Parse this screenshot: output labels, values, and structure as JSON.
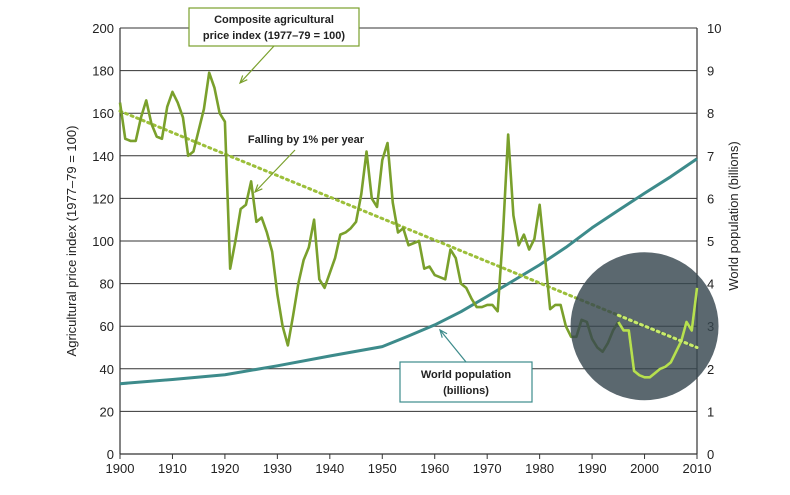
{
  "chart_data": {
    "type": "line",
    "xlim": [
      1900,
      2010
    ],
    "x_ticks": [
      1900,
      1910,
      1920,
      1930,
      1940,
      1950,
      1960,
      1970,
      1980,
      1990,
      2000,
      2010
    ],
    "y_left": {
      "label": "Agricultural price index (1977–79 = 100)",
      "lim": [
        0,
        200
      ],
      "ticks": [
        0,
        20,
        40,
        60,
        80,
        100,
        120,
        140,
        160,
        180,
        200
      ]
    },
    "y_right": {
      "label": "World population (billions)",
      "lim": [
        0,
        10
      ],
      "ticks": [
        0,
        1,
        2,
        3,
        4,
        5,
        6,
        7,
        8,
        9,
        10
      ]
    },
    "grid": true,
    "series": [
      {
        "name": "Composite agricultural price index (1977–79 = 100)",
        "axis": "left",
        "color": "#7aa02c",
        "x": [
          1900,
          1901,
          1902,
          1903,
          1904,
          1905,
          1906,
          1907,
          1908,
          1909,
          1910,
          1911,
          1912,
          1913,
          1914,
          1915,
          1916,
          1917,
          1918,
          1919,
          1920,
          1921,
          1922,
          1923,
          1924,
          1925,
          1926,
          1927,
          1928,
          1929,
          1930,
          1931,
          1932,
          1933,
          1934,
          1935,
          1936,
          1937,
          1938,
          1939,
          1940,
          1941,
          1942,
          1943,
          1944,
          1945,
          1946,
          1947,
          1948,
          1949,
          1950,
          1951,
          1952,
          1953,
          1954,
          1955,
          1956,
          1957,
          1958,
          1959,
          1960,
          1961,
          1962,
          1963,
          1964,
          1965,
          1966,
          1967,
          1968,
          1969,
          1970,
          1971,
          1972,
          1973,
          1974,
          1975,
          1976,
          1977,
          1978,
          1979,
          1980,
          1981,
          1982,
          1983,
          1984,
          1985,
          1986,
          1987,
          1988,
          1989,
          1990,
          1991,
          1992,
          1993,
          1994,
          1995,
          1996,
          1997,
          1998,
          1999,
          2000,
          2001,
          2002,
          2003,
          2004,
          2005,
          2006,
          2007,
          2008,
          2009,
          2010
        ],
        "values": [
          165,
          148,
          147,
          147,
          158,
          166,
          155,
          149,
          148,
          163,
          170,
          165,
          158,
          140,
          142,
          152,
          162,
          179,
          172,
          160,
          156,
          87,
          100,
          115,
          117,
          128,
          109,
          111,
          104,
          95,
          75,
          60,
          51,
          65,
          80,
          91,
          97,
          110,
          82,
          78,
          85,
          92,
          103,
          104,
          106,
          109,
          122,
          142,
          120,
          116,
          138,
          146,
          118,
          104,
          106,
          98,
          99,
          100,
          87,
          88,
          84,
          83,
          82,
          96,
          92,
          80,
          78,
          73,
          69,
          69,
          70,
          70,
          67,
          103,
          150,
          112,
          98,
          103,
          96,
          101,
          117,
          93,
          68,
          70,
          70,
          60,
          55,
          55,
          63,
          62,
          54,
          50,
          48,
          52,
          58,
          62,
          58,
          58,
          39,
          37,
          36,
          36,
          38,
          40,
          41,
          43,
          48,
          53,
          62,
          58,
          78
        ]
      },
      {
        "name": "World population (billions)",
        "axis": "right",
        "color": "#3d8b8b",
        "x": [
          1900,
          1910,
          1920,
          1930,
          1940,
          1950,
          1955,
          1960,
          1965,
          1970,
          1975,
          1980,
          1985,
          1990,
          1995,
          2000,
          2005,
          2010
        ],
        "values": [
          1.65,
          1.75,
          1.86,
          2.07,
          2.3,
          2.52,
          2.77,
          3.03,
          3.34,
          3.7,
          4.07,
          4.44,
          4.85,
          5.31,
          5.72,
          6.12,
          6.51,
          6.93
        ]
      },
      {
        "name": "Falling by 1% per year",
        "axis": "left",
        "style": "dotted",
        "color": "#9cbf3a",
        "x": [
          1900,
          2010
        ],
        "values": [
          161,
          50
        ]
      }
    ],
    "annotations": [
      {
        "text_lines": [
          "Composite agricultural",
          "price index (1977–79 = 100)"
        ],
        "boxed": true,
        "border": "#7aa02c"
      },
      {
        "text_lines": [
          "Falling by 1% per year"
        ],
        "boxed": false
      },
      {
        "text_lines": [
          "World population",
          "(billions)"
        ],
        "boxed": true,
        "border": "#3d8b8b"
      }
    ],
    "highlight": {
      "color": "#37474f",
      "opacity": 0.85,
      "center_x": 2000,
      "center_y": 60
    }
  }
}
